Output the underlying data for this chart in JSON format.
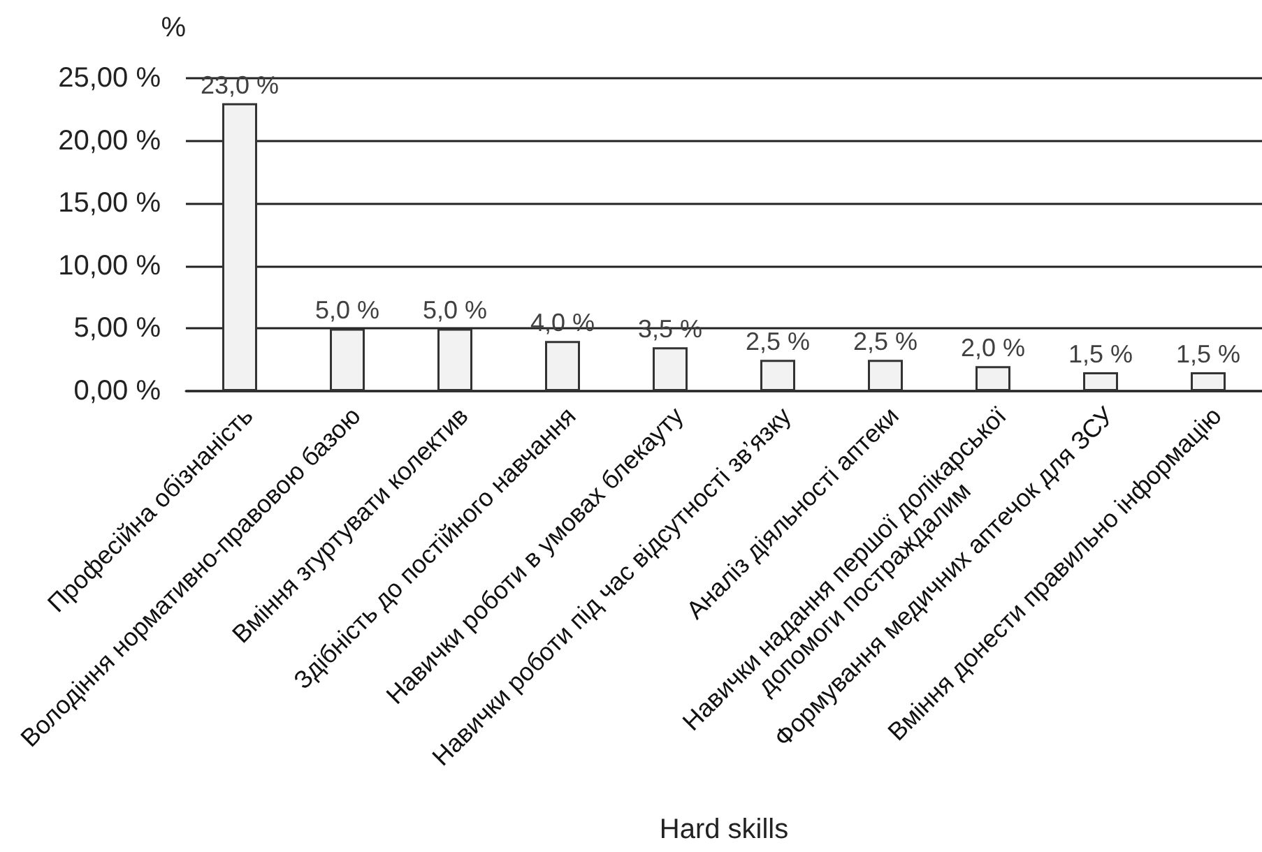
{
  "chart_data": {
    "type": "bar",
    "xlabel": "Hard skills",
    "ylabel": "%",
    "categories": [
      "Професійна обізнаність",
      "Володіння нормативно-правовою базою",
      "Вміння згуртувати колектив",
      "Здібність до постійного навчання",
      "Навички роботи в умовах блекауту",
      "Навички роботи під час відсутності зв’язку",
      "Аналіз діяльності аптеки",
      "Навички надання першої долікарської\nдопомоги постраждалим",
      "Формування медичних аптечок для ЗСУ",
      "Вміння донести правильно інформацію"
    ],
    "values": [
      23,
      5,
      5,
      4,
      3.5,
      2.5,
      2.5,
      2,
      1.5,
      1.5
    ],
    "value_labels": [
      "23,0 %",
      "5,0 %",
      "5,0 %",
      "4,0 %",
      "3,5 %",
      "2,5 %",
      "2,5 %",
      "2,0 %",
      "1,5 %",
      "1,5 %"
    ],
    "color": "#f2f2f2",
    "ylim": [
      0,
      25
    ],
    "yticks": [
      {
        "value": 0,
        "label": "0,00 %"
      },
      {
        "value": 5,
        "label": "5,00 %"
      },
      {
        "value": 10,
        "label": "10,00 %"
      },
      {
        "value": 15,
        "label": "15,00 %"
      },
      {
        "value": 20,
        "label": "20,00 %"
      },
      {
        "value": 25,
        "label": "25,00 %"
      }
    ],
    "grid": "y"
  }
}
